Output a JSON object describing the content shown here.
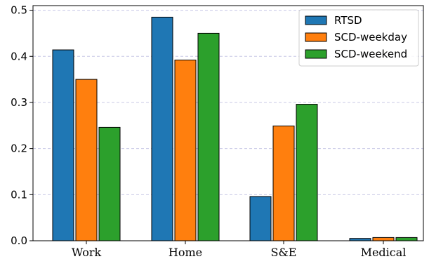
{
  "chart_data": {
    "type": "bar",
    "categories": [
      "Work",
      "Home",
      "S&E",
      "Medical"
    ],
    "series": [
      {
        "name": "RTSD",
        "values": [
          0.414,
          0.485,
          0.096,
          0.005
        ],
        "color": "#1f77b4"
      },
      {
        "name": "SCD-weekday",
        "values": [
          0.35,
          0.392,
          0.249,
          0.007
        ],
        "color": "#ff7f0e"
      },
      {
        "name": "SCD-weekend",
        "values": [
          0.246,
          0.45,
          0.296,
          0.007
        ],
        "color": "#2ca02c"
      }
    ],
    "yticks": [
      "0.0",
      "0.1",
      "0.2",
      "0.3",
      "0.4",
      "0.5"
    ],
    "ylim": [
      0,
      0.51
    ],
    "grid": "horizontal-dashed",
    "legend_position": "top-right"
  }
}
